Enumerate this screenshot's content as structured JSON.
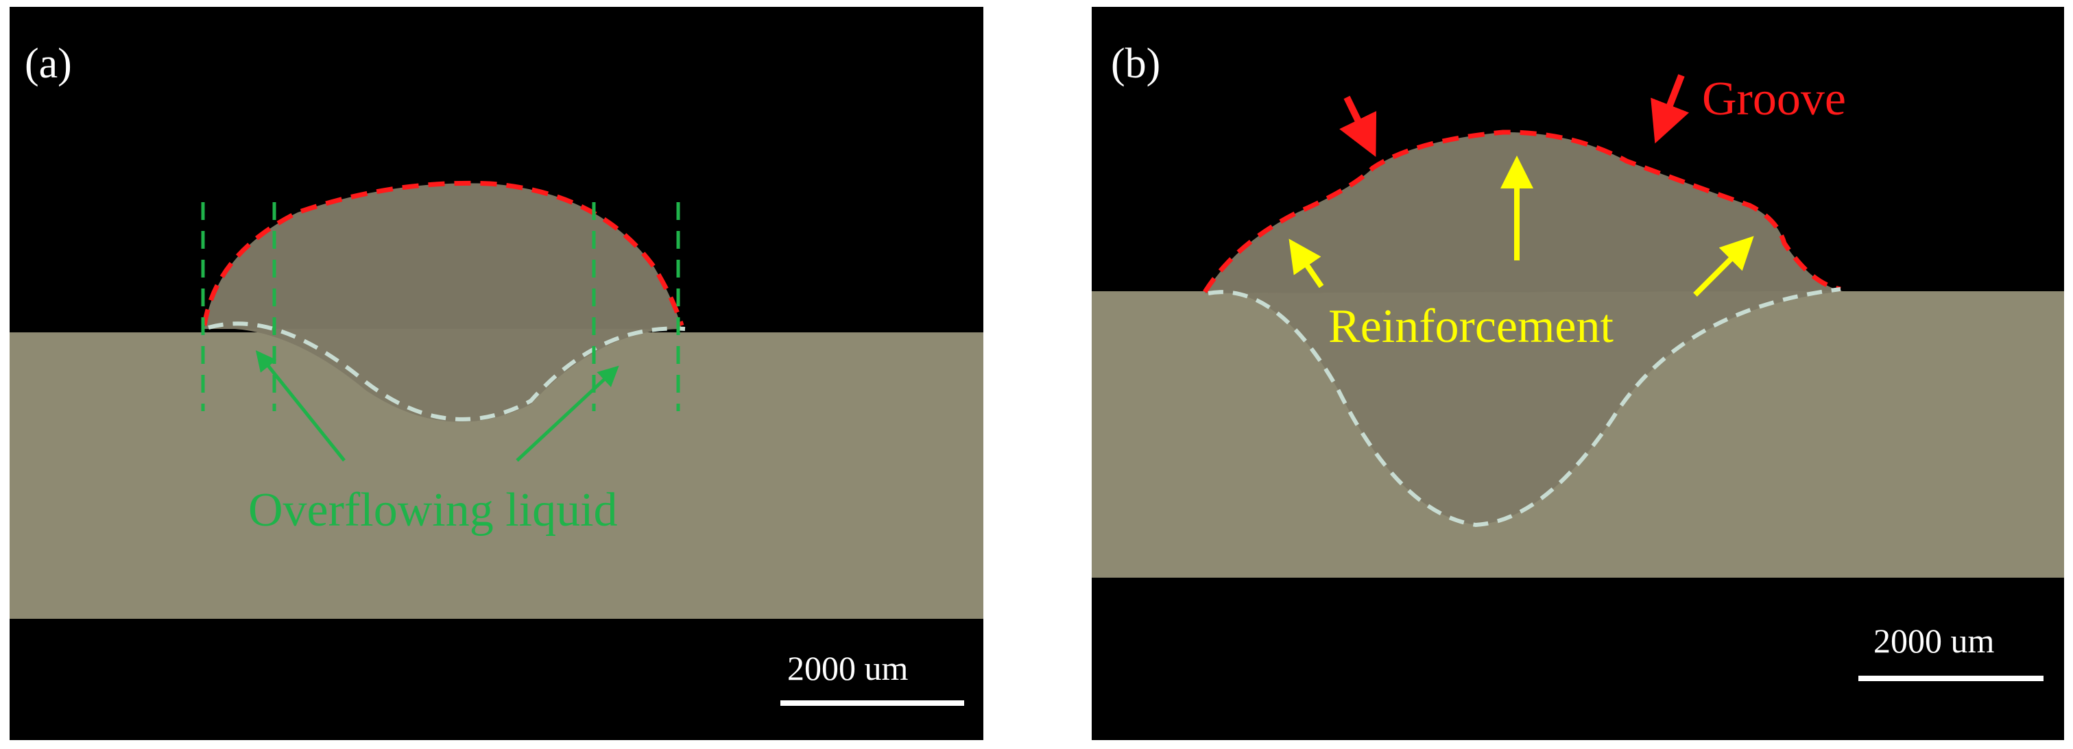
{
  "panels": [
    {
      "label": "(a)",
      "annotation": "Overflowing liquid",
      "scale_bar": "2000 um"
    },
    {
      "label": "(b)",
      "annotation_groove": "Groove",
      "annotation_reinforcement": "Reinforcement",
      "scale_bar": "2000 um"
    }
  ],
  "colors": {
    "background": "#000000",
    "metal": "#8e8a72",
    "bead": "#7a7562",
    "outline_red": "#ff1a1a",
    "fusion_line": "#c8dcd2",
    "green": "#1fb34a",
    "yellow": "#ffff00"
  }
}
